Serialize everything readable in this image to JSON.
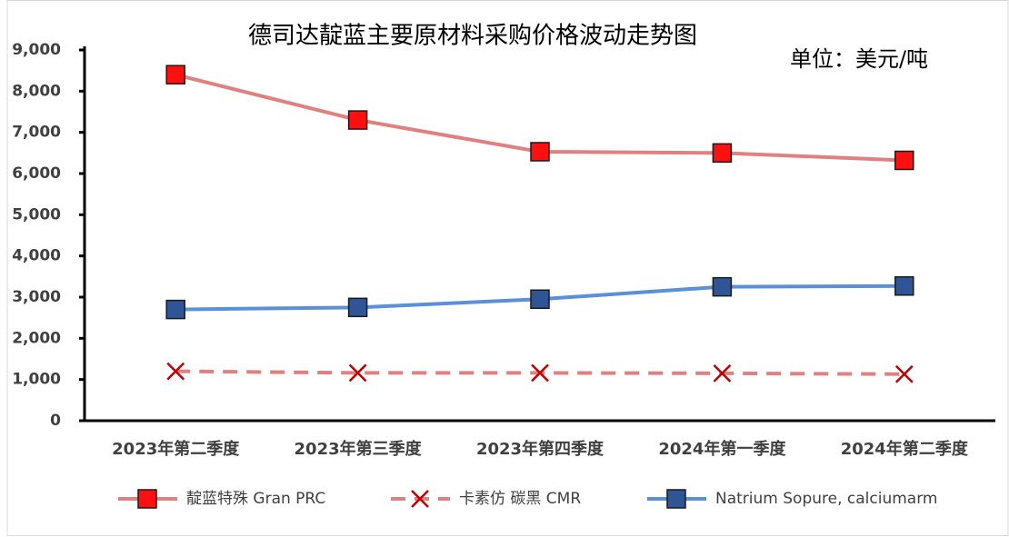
{
  "chart_data": {
    "type": "line",
    "title": "德司达靛蓝主要原材料采购价格波动走势图",
    "unit_label": "单位：美元/吨",
    "categories": [
      "2023年第二季度",
      "2023年第三季度",
      "2023年第四季度",
      "2024年第一季度",
      "2024年第二季度"
    ],
    "series": [
      {
        "name": "靛蓝特殊 Gran PRC",
        "color": "#e08080",
        "marker": "square",
        "marker_color": "#ff1010",
        "line_style": "solid",
        "values": [
          8400,
          7300,
          6530,
          6500,
          6320
        ]
      },
      {
        "name": "卡素仿 碳黑 CMR",
        "color": "#e08080",
        "marker": "x",
        "marker_color": "#c00000",
        "line_style": "dashed",
        "values": [
          1200,
          1160,
          1160,
          1150,
          1130
        ]
      },
      {
        "name": "Natrium Sopure, calciumarm",
        "color": "#5b8fd6",
        "marker": "square",
        "marker_color": "#2f5597",
        "line_style": "solid",
        "values": [
          2700,
          2750,
          2950,
          3250,
          3270
        ]
      }
    ],
    "ylim": [
      0,
      9000
    ],
    "yticks": [
      0,
      {
        "value": 1000,
        "label": "1,000"
      },
      {
        "value": 2000,
        "label": "2,000"
      },
      {
        "value": 3000,
        "label": "3,000"
      },
      {
        "value": 4000,
        "label": "4,000"
      },
      {
        "value": 5000,
        "label": "5,000"
      },
      {
        "value": 6000,
        "label": "6,000"
      },
      {
        "value": 7000,
        "label": "7,000"
      },
      {
        "value": 8000,
        "label": "8,000"
      },
      {
        "value": 9000,
        "label": "9,000"
      }
    ],
    "grid": false,
    "legend": "bottom"
  }
}
